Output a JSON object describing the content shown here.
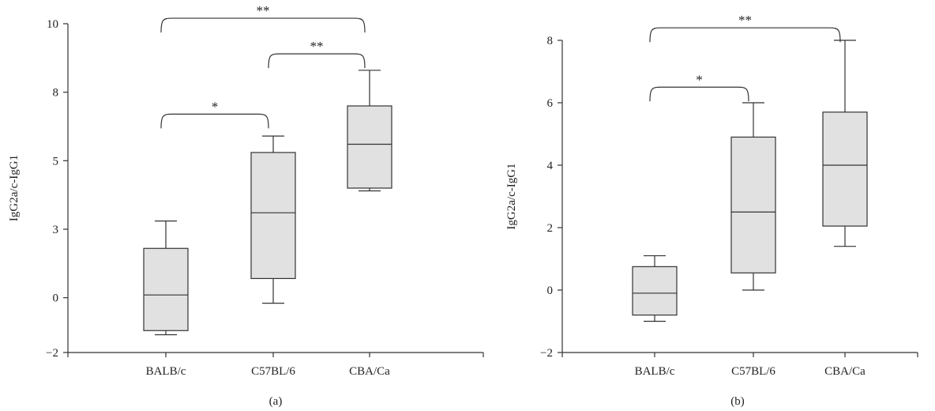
{
  "colors": {
    "box_fill": "#e1e1e1",
    "stroke": "#333333"
  },
  "chart_data": [
    {
      "type": "box",
      "panel_label": "(a)",
      "ylabel": "IgG2a/c-IgG1",
      "ylim": [
        -2,
        10
      ],
      "yticks": [
        {
          "value": -2,
          "label": "−2"
        },
        {
          "value": 0,
          "label": "0"
        },
        {
          "value": 2.5,
          "label": "3"
        },
        {
          "value": 5,
          "label": "5"
        },
        {
          "value": 7.5,
          "label": "8"
        },
        {
          "value": 10,
          "label": "10"
        }
      ],
      "categories": [
        "BALB/c",
        "C57BL/6",
        "CBA/Ca"
      ],
      "boxes": [
        {
          "category": "BALB/c",
          "min": -1.35,
          "q1": -1.2,
          "median": 0.1,
          "q3": 1.8,
          "max": 2.8
        },
        {
          "category": "C57BL/6",
          "min": -0.2,
          "q1": 0.7,
          "median": 3.1,
          "q3": 5.3,
          "max": 5.9
        },
        {
          "category": "CBA/Ca",
          "min": 3.9,
          "q1": 4.0,
          "median": 5.6,
          "q3": 7.0,
          "max": 8.3
        }
      ],
      "significance": [
        {
          "from": "BALB/c",
          "to": "C57BL/6",
          "label": "*",
          "y": 6.7
        },
        {
          "from": "C57BL/6",
          "to": "CBA/Ca",
          "label": "**",
          "y": 8.9
        },
        {
          "from": "BALB/c",
          "to": "CBA/Ca",
          "label": "**",
          "y": 10.2
        }
      ]
    },
    {
      "type": "box",
      "panel_label": "(b)",
      "ylabel": "IgG2a/c-IgG1",
      "ylim": [
        -2,
        8
      ],
      "yticks": [
        {
          "value": -2,
          "label": "−2"
        },
        {
          "value": 0,
          "label": "0"
        },
        {
          "value": 2,
          "label": "2"
        },
        {
          "value": 4,
          "label": "4"
        },
        {
          "value": 6,
          "label": "6"
        },
        {
          "value": 8,
          "label": "8"
        }
      ],
      "categories": [
        "BALB/c",
        "C57BL/6",
        "CBA/Ca"
      ],
      "boxes": [
        {
          "category": "BALB/c",
          "min": -1.0,
          "q1": -0.8,
          "median": -0.1,
          "q3": 0.75,
          "max": 1.1
        },
        {
          "category": "C57BL/6",
          "min": 0.0,
          "q1": 0.55,
          "median": 2.5,
          "q3": 4.9,
          "max": 6.0
        },
        {
          "category": "CBA/Ca",
          "min": 1.4,
          "q1": 2.05,
          "median": 4.0,
          "q3": 5.7,
          "max": 8.0
        }
      ],
      "significance": [
        {
          "from": "BALB/c",
          "to": "C57BL/6",
          "label": "*",
          "y": 6.5
        },
        {
          "from": "BALB/c",
          "to": "CBA/Ca",
          "label": "**",
          "y": 8.4
        }
      ]
    }
  ]
}
